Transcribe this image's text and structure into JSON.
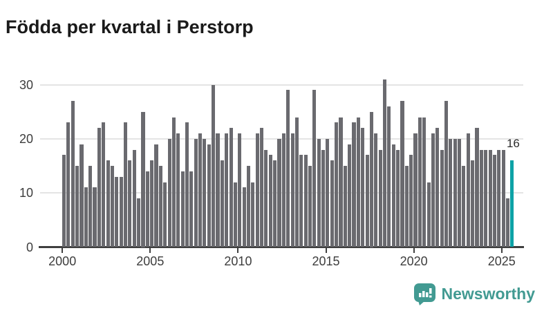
{
  "title": "Födda per kvartal i Perstorp",
  "branding": {
    "name": "Newsworthy",
    "logo_icon": "bar-chart-speech-bubble-icon",
    "color": "#429a92"
  },
  "chart_data": {
    "type": "bar",
    "title": "Födda per kvartal i Perstorp",
    "xlabel": "",
    "ylabel": "",
    "x_unit": "quarter",
    "x_range": "2000 Q1 – 2025 Q3",
    "y_ticks": [
      0,
      10,
      20,
      30
    ],
    "ylim": [
      0,
      33
    ],
    "grid": "horizontal",
    "legend": "none",
    "bar_color": "#6a6a6f",
    "highlight": {
      "index_from_end": 1,
      "color": "#0da2a6",
      "label": "16"
    },
    "x_tick_labels": [
      "2000",
      "2005",
      "2010",
      "2015",
      "2020",
      "2025"
    ],
    "years": [
      {
        "year": 2000,
        "values": [
          17,
          23,
          27,
          15
        ]
      },
      {
        "year": 2001,
        "values": [
          19,
          11,
          15,
          11
        ]
      },
      {
        "year": 2002,
        "values": [
          22,
          23,
          16,
          15
        ]
      },
      {
        "year": 2003,
        "values": [
          13,
          13,
          23,
          16
        ]
      },
      {
        "year": 2004,
        "values": [
          18,
          9,
          25,
          14
        ]
      },
      {
        "year": 2005,
        "values": [
          16,
          19,
          15,
          12
        ]
      },
      {
        "year": 2006,
        "values": [
          20,
          24,
          21,
          14
        ]
      },
      {
        "year": 2007,
        "values": [
          23,
          14,
          20,
          21
        ]
      },
      {
        "year": 2008,
        "values": [
          20,
          19,
          30,
          21
        ]
      },
      {
        "year": 2009,
        "values": [
          16,
          21,
          22,
          12
        ]
      },
      {
        "year": 2010,
        "values": [
          21,
          11,
          15,
          12
        ]
      },
      {
        "year": 2011,
        "values": [
          21,
          22,
          18,
          17
        ]
      },
      {
        "year": 2012,
        "values": [
          16,
          20,
          21,
          29
        ]
      },
      {
        "year": 2013,
        "values": [
          21,
          24,
          17,
          17
        ]
      },
      {
        "year": 2014,
        "values": [
          15,
          29,
          20,
          18
        ]
      },
      {
        "year": 2015,
        "values": [
          20,
          16,
          23,
          24
        ]
      },
      {
        "year": 2016,
        "values": [
          15,
          19,
          23,
          24
        ]
      },
      {
        "year": 2017,
        "values": [
          22,
          17,
          25,
          21
        ]
      },
      {
        "year": 2018,
        "values": [
          18,
          31,
          26,
          19
        ]
      },
      {
        "year": 2019,
        "values": [
          18,
          27,
          15,
          17
        ]
      },
      {
        "year": 2020,
        "values": [
          21,
          24,
          24,
          12
        ]
      },
      {
        "year": 2021,
        "values": [
          21,
          22,
          18,
          27
        ]
      },
      {
        "year": 2022,
        "values": [
          20,
          20,
          20,
          15
        ]
      },
      {
        "year": 2023,
        "values": [
          21,
          16,
          22,
          18
        ]
      },
      {
        "year": 2024,
        "values": [
          18,
          18,
          17,
          18
        ]
      },
      {
        "year": 2025,
        "values": [
          18,
          9,
          16
        ]
      }
    ]
  }
}
